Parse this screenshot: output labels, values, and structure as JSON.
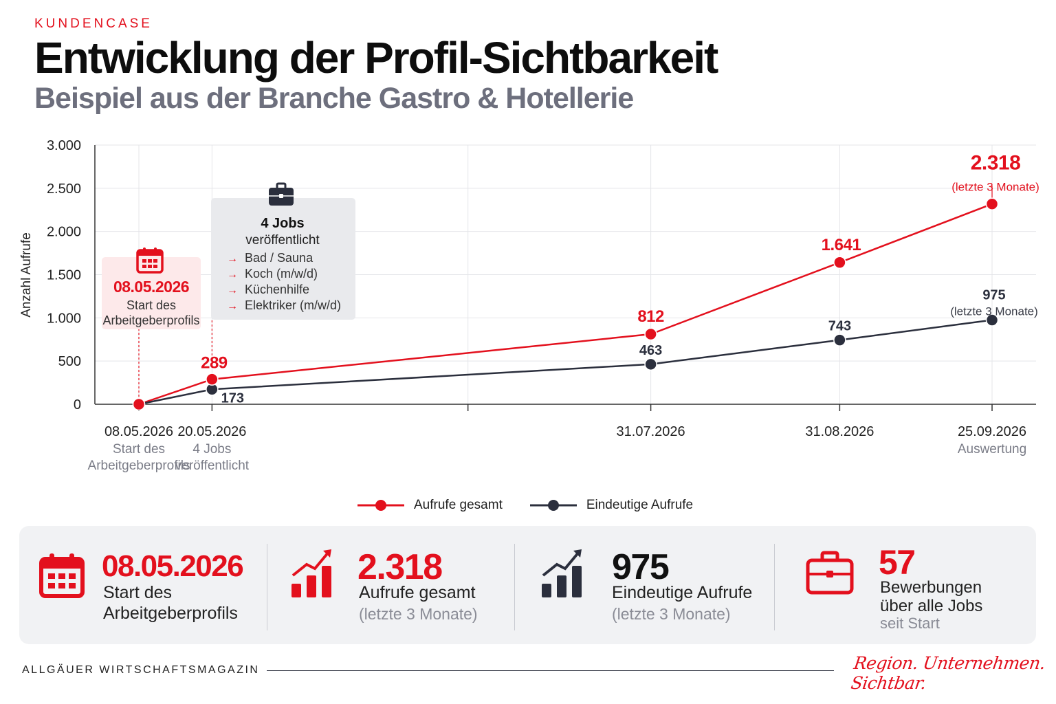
{
  "header": {
    "kicker": "KUNDENCASE",
    "title": "Entwicklung der Profil-Sichtbarkeit",
    "subtitle": "Beispiel aus der Branche Gastro & Hotellerie"
  },
  "colors": {
    "accent": "#e3101d",
    "dark": "#2b2f3d",
    "muted": "#6d6f7d"
  },
  "chart_data": {
    "type": "line",
    "ylabel": "Anzahl Aufrufe",
    "ylim": [
      0,
      3000
    ],
    "yticks": [
      0,
      500,
      1000,
      1500,
      2000,
      2500,
      3000
    ],
    "ytick_labels": [
      "0",
      "500",
      "1.000",
      "1.500",
      "2.000",
      "2.500",
      "3.000"
    ],
    "xlim": [
      "2026-05-08",
      "2026-09-25"
    ],
    "x_ticks": [
      {
        "date": "2026-05-08",
        "label": "08.05.2026",
        "sub": "Start des Arbeitgeberprofils"
      },
      {
        "date": "2026-05-20",
        "label": "20.05.2026",
        "sub": "4 Jobs veröffentlicht"
      },
      {
        "date": "2026-07-01",
        "label": "",
        "sub": ""
      },
      {
        "date": "2026-07-31",
        "label": "31.07.2026",
        "sub": ""
      },
      {
        "date": "2026-08-31",
        "label": "31.08.2026",
        "sub": ""
      },
      {
        "date": "2026-09-25",
        "label": "25.09.2026",
        "sub": "Auswertung"
      }
    ],
    "grid": true,
    "legend_position": "bottom-center",
    "series": [
      {
        "name": "Aufrufe gesamt",
        "color": "#e3101d",
        "points": [
          {
            "x": "2026-05-08",
            "y": 0,
            "label": ""
          },
          {
            "x": "2026-05-20",
            "y": 289,
            "label": "289"
          },
          {
            "x": "2026-07-31",
            "y": 812,
            "label": "812"
          },
          {
            "x": "2026-08-31",
            "y": 1641,
            "label": "1.641"
          },
          {
            "x": "2026-09-25",
            "y": 2318,
            "label": "2.318",
            "note": "(letzte 3 Monate)"
          }
        ]
      },
      {
        "name": "Eindeutige Aufrufe",
        "color": "#2b2f3d",
        "points": [
          {
            "x": "2026-05-08",
            "y": 0,
            "label": ""
          },
          {
            "x": "2026-05-20",
            "y": 173,
            "label": "173"
          },
          {
            "x": "2026-07-31",
            "y": 463,
            "label": "463"
          },
          {
            "x": "2026-08-31",
            "y": 743,
            "label": "743"
          },
          {
            "x": "2026-09-25",
            "y": 975,
            "label": "975",
            "note": "(letzte 3 Monate)"
          }
        ]
      }
    ],
    "annotations": [
      {
        "id": "start",
        "icon": "calendar-icon",
        "title": "08.05.2026",
        "text": "Start des Arbeitgeberprofils"
      },
      {
        "id": "jobs",
        "icon": "briefcase-icon",
        "title": "4 Jobs",
        "text": "veröffentlicht",
        "items": [
          "Bad / Sauna",
          "Koch (m/w/d)",
          "Küchenhilfe",
          "Elektriker (m/w/d)"
        ]
      }
    ]
  },
  "stats": [
    {
      "icon": "calendar-icon",
      "value": "08.05.2026",
      "label": "Start des Arbeitgeberprofils",
      "sub": ""
    },
    {
      "icon": "rising-bar-chart-icon",
      "value": "2.318",
      "label": "Aufrufe gesamt",
      "sub": "(letzte 3 Monate)"
    },
    {
      "icon": "rising-bar-chart-icon",
      "value": "975",
      "label": "Eindeutige Aufrufe",
      "sub": "(letzte 3 Monate)"
    },
    {
      "icon": "briefcase-icon",
      "value": "57",
      "label": "Bewerbungen über alle Jobs",
      "sub": "seit Start"
    }
  ],
  "footer": {
    "brand": "ALLGÄUER WIRTSCHAFTSMAGAZIN",
    "tagline": "Region. Unternehmen. Sichtbar."
  }
}
